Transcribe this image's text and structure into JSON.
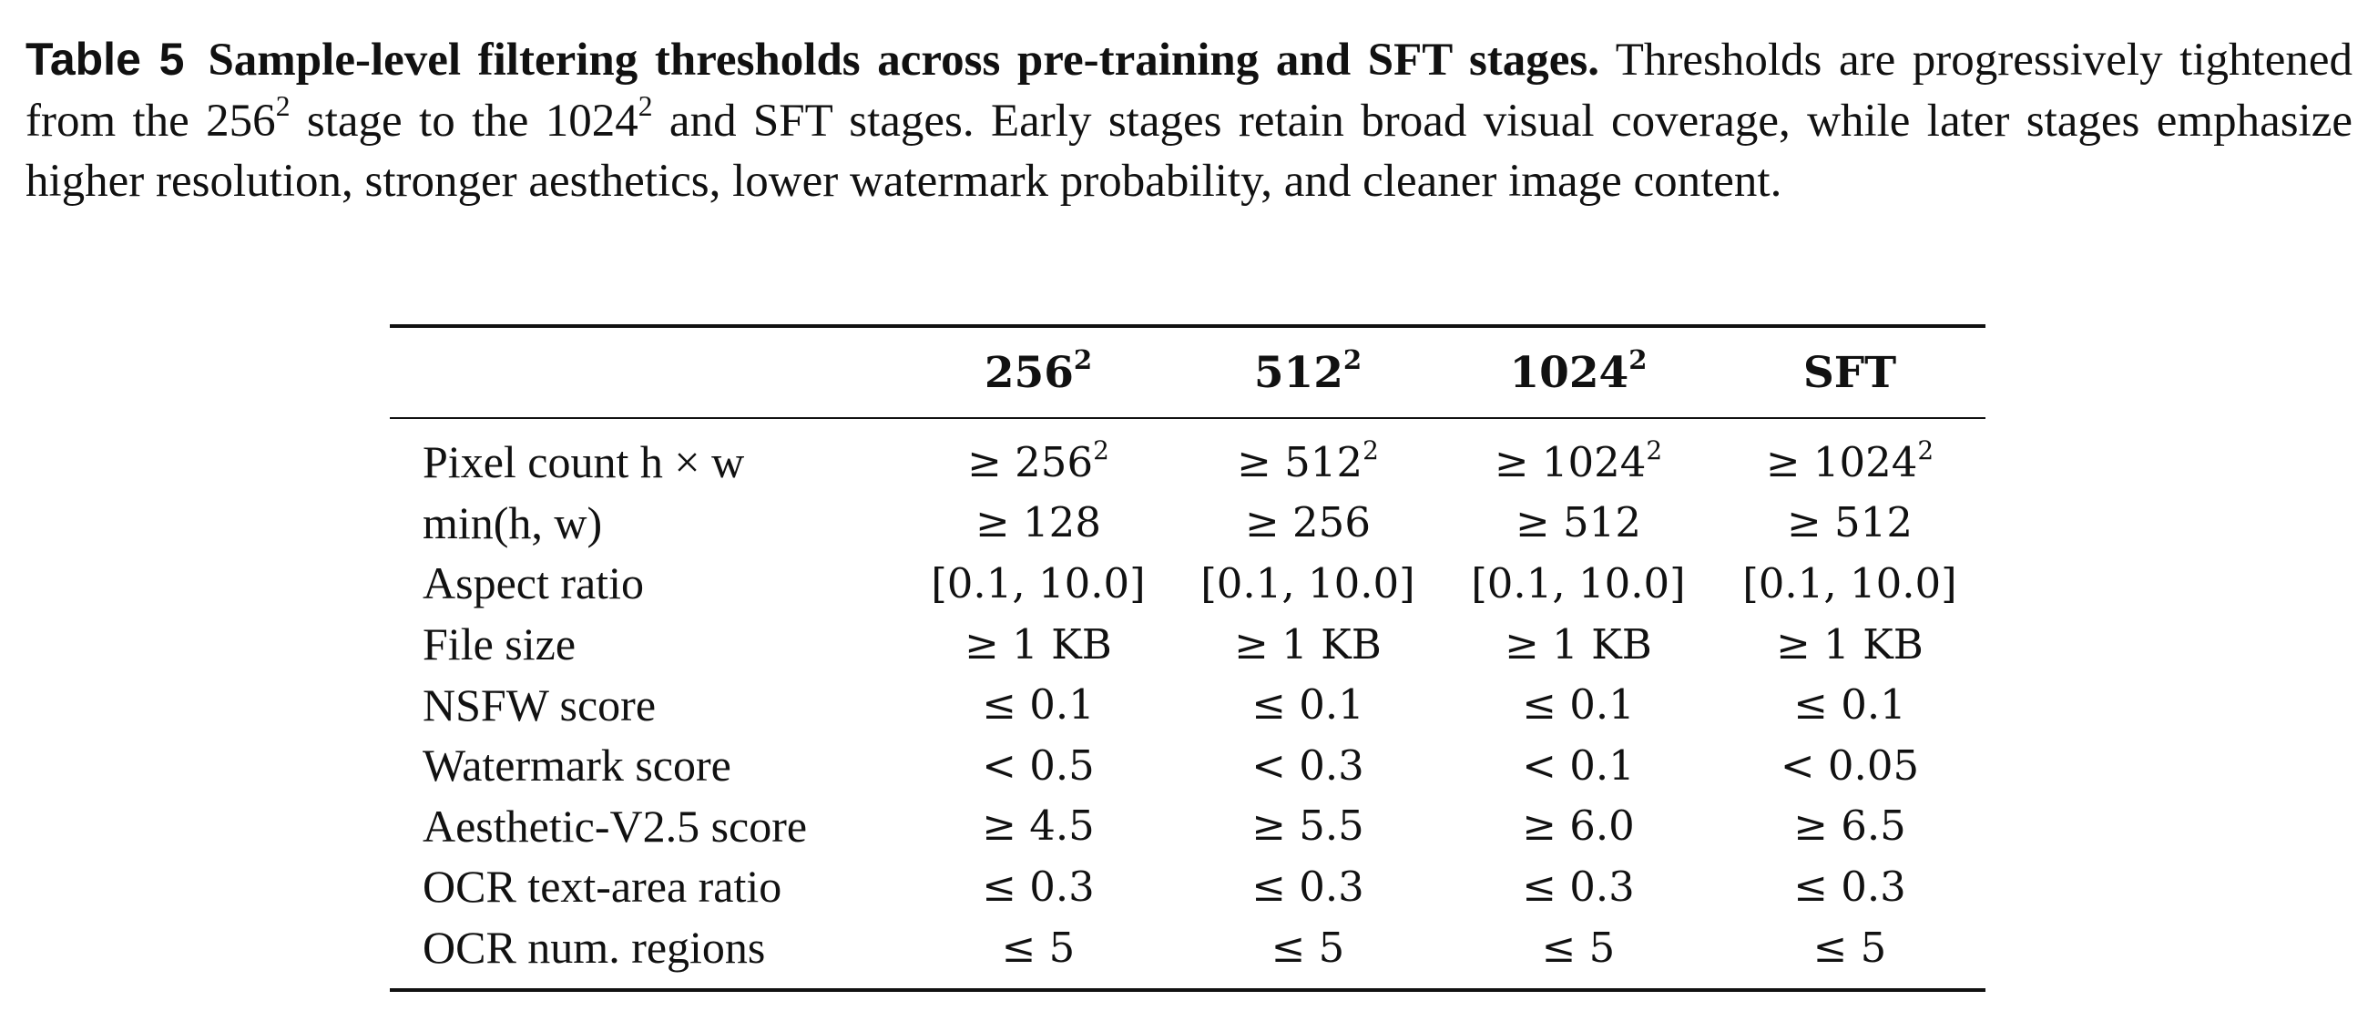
{
  "caption": {
    "label": "Table 5",
    "title": "Sample-level filtering thresholds across pre-training and SFT stages.",
    "text_a": "Thresholds are progressively tightened from the 256",
    "text_a_sup": "2",
    "text_b": " stage to the 1024",
    "text_b_sup": "2",
    "text_c": " and SFT stages. Early stages retain broad visual coverage, while later stages emphasize higher resolution, stronger aesthetics, lower watermark probability, and cleaner image content."
  },
  "table": {
    "columns": [
      {
        "base": "256",
        "sup": "2"
      },
      {
        "base": "512",
        "sup": "2"
      },
      {
        "base": "1024",
        "sup": "2"
      },
      {
        "base": "SFT",
        "sup": ""
      }
    ],
    "rows": [
      {
        "label": "Pixel count h × w",
        "cells": [
          {
            "v": "≥ 256",
            "sup": "2"
          },
          {
            "v": "≥ 512",
            "sup": "2"
          },
          {
            "v": "≥ 1024",
            "sup": "2"
          },
          {
            "v": "≥ 1024",
            "sup": "2"
          }
        ]
      },
      {
        "label": "min(h, w)",
        "cells": [
          {
            "v": "≥ 128",
            "sup": ""
          },
          {
            "v": "≥ 256",
            "sup": ""
          },
          {
            "v": "≥ 512",
            "sup": ""
          },
          {
            "v": "≥ 512",
            "sup": ""
          }
        ]
      },
      {
        "label": "Aspect ratio",
        "cells": [
          {
            "v": "[0.1, 10.0]",
            "sup": ""
          },
          {
            "v": "[0.1, 10.0]",
            "sup": ""
          },
          {
            "v": "[0.1, 10.0]",
            "sup": ""
          },
          {
            "v": "[0.1, 10.0]",
            "sup": ""
          }
        ]
      },
      {
        "label": "File size",
        "cells": [
          {
            "v": "≥ 1 KB",
            "sup": ""
          },
          {
            "v": "≥ 1 KB",
            "sup": ""
          },
          {
            "v": "≥ 1 KB",
            "sup": ""
          },
          {
            "v": "≥ 1 KB",
            "sup": ""
          }
        ]
      },
      {
        "label": "NSFW score",
        "cells": [
          {
            "v": "≤ 0.1",
            "sup": ""
          },
          {
            "v": "≤ 0.1",
            "sup": ""
          },
          {
            "v": "≤ 0.1",
            "sup": ""
          },
          {
            "v": "≤ 0.1",
            "sup": ""
          }
        ]
      },
      {
        "label": "Watermark score",
        "cells": [
          {
            "v": "< 0.5",
            "sup": ""
          },
          {
            "v": "< 0.3",
            "sup": ""
          },
          {
            "v": "< 0.1",
            "sup": ""
          },
          {
            "v": "< 0.05",
            "sup": ""
          }
        ]
      },
      {
        "label": "Aesthetic-V2.5 score",
        "cells": [
          {
            "v": "≥ 4.5",
            "sup": ""
          },
          {
            "v": "≥ 5.5",
            "sup": ""
          },
          {
            "v": "≥ 6.0",
            "sup": ""
          },
          {
            "v": "≥ 6.5",
            "sup": ""
          }
        ]
      },
      {
        "label": "OCR text-area ratio",
        "cells": [
          {
            "v": "≤ 0.3",
            "sup": ""
          },
          {
            "v": "≤ 0.3",
            "sup": ""
          },
          {
            "v": "≤ 0.3",
            "sup": ""
          },
          {
            "v": "≤ 0.3",
            "sup": ""
          }
        ]
      },
      {
        "label": "OCR num. regions",
        "cells": [
          {
            "v": "≤ 5",
            "sup": ""
          },
          {
            "v": "≤ 5",
            "sup": ""
          },
          {
            "v": "≤ 5",
            "sup": ""
          },
          {
            "v": "≤ 5",
            "sup": ""
          }
        ]
      }
    ]
  }
}
